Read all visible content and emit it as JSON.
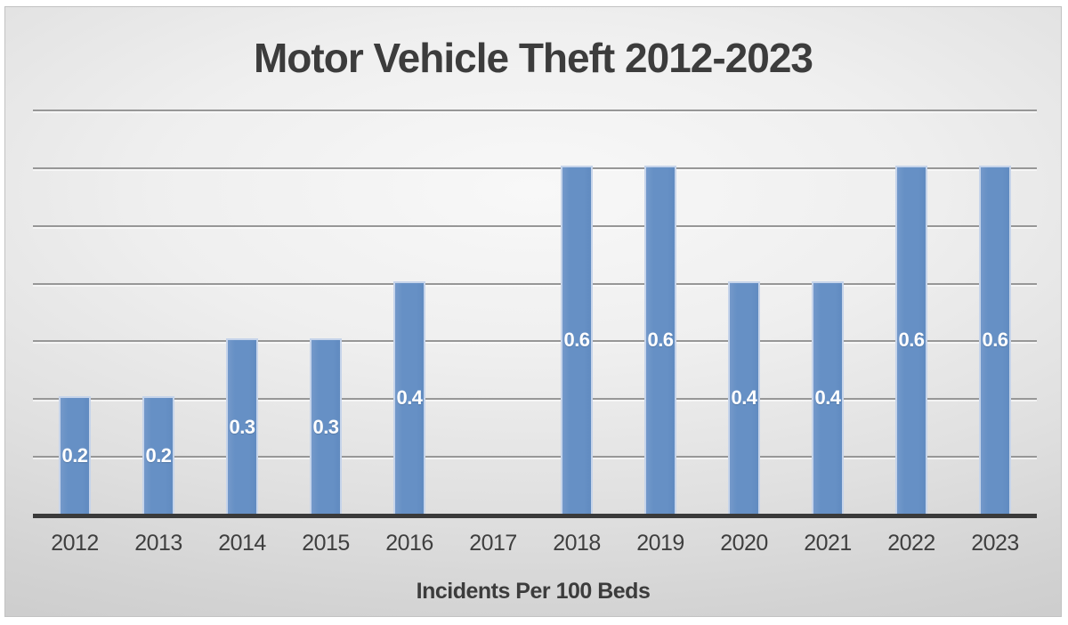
{
  "chart_data": {
    "type": "bar",
    "title": "Motor Vehicle Theft 2012-2023",
    "xlabel": "Incidents Per 100 Beds",
    "ylabel": "",
    "categories": [
      "2012",
      "2013",
      "2014",
      "2015",
      "2016",
      "2017",
      "2018",
      "2019",
      "2020",
      "2021",
      "2022",
      "2023"
    ],
    "values": [
      0.2,
      0.2,
      0.3,
      0.3,
      0.4,
      0,
      0.6,
      0.6,
      0.4,
      0.4,
      0.6,
      0.6
    ],
    "data_labels": [
      "0.2",
      "0.2",
      "0.3",
      "0.3",
      "0.4",
      "",
      "0.6",
      "0.6",
      "0.4",
      "0.4",
      "0.6",
      "0.6"
    ],
    "ylim": [
      0,
      0.7
    ],
    "gridline_step": 0.1,
    "grid": "horizontal",
    "legend": "none",
    "colors": {
      "bar_fill": "#6690c5",
      "bar_border": "#c6d4ea",
      "data_label": "#ffffff",
      "gridline": "#979797",
      "axis_line": "#3a3a3a",
      "text": "#3c3c3c",
      "panel_edge": "#c7c7c7",
      "panel_center": "#f8f8f8"
    }
  }
}
